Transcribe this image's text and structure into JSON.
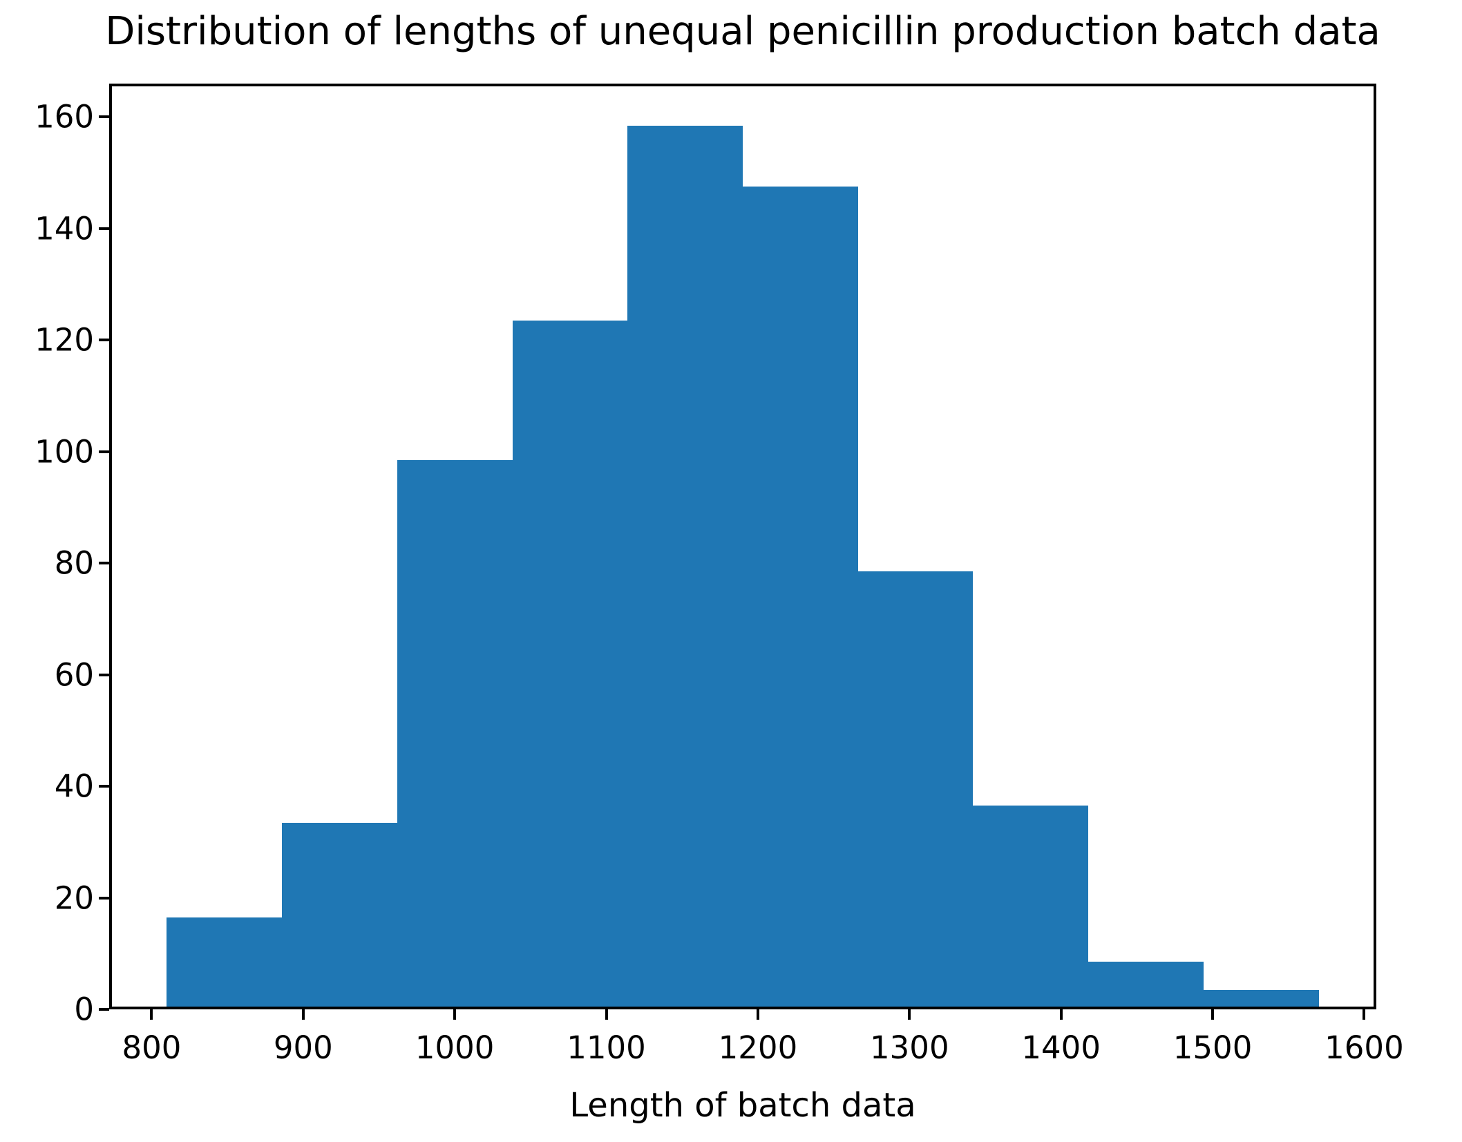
{
  "figure": {
    "background_color": "#ffffff",
    "spine_color": "#000000",
    "text_color": "#000000"
  },
  "chart_data": {
    "type": "bar",
    "subtype": "histogram",
    "title": "Distribution of lengths of unequal penicillin production batch data",
    "xlabel": "Length of batch data",
    "ylabel": "",
    "bar_color": "#1f77b4",
    "bin_edges": [
      810,
      886,
      962,
      1038,
      1114,
      1190,
      1266,
      1342,
      1418,
      1494,
      1570
    ],
    "counts": [
      16,
      33,
      98,
      123,
      158,
      147,
      78,
      36,
      8,
      3
    ],
    "x_ticks": [
      800,
      900,
      1000,
      1100,
      1200,
      1300,
      1400,
      1500,
      1600
    ],
    "y_ticks": [
      0,
      20,
      40,
      60,
      80,
      100,
      120,
      140,
      160
    ],
    "xlim": [
      772,
      1608
    ],
    "ylim": [
      0,
      166
    ],
    "grid": false,
    "legend_position": "none"
  }
}
